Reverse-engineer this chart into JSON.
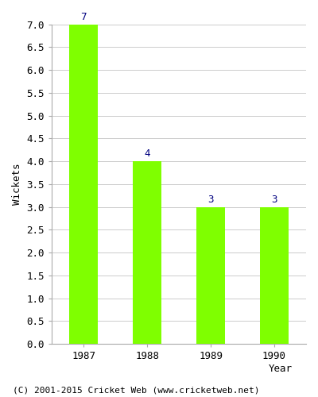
{
  "years": [
    "1987",
    "1988",
    "1989",
    "1990"
  ],
  "values": [
    7,
    4,
    3,
    3
  ],
  "bar_color": "#7FFF00",
  "xlabel": "Year",
  "ylabel": "Wickets",
  "ylim": [
    0.0,
    7.0
  ],
  "yticks": [
    0.0,
    0.5,
    1.0,
    1.5,
    2.0,
    2.5,
    3.0,
    3.5,
    4.0,
    4.5,
    5.0,
    5.5,
    6.0,
    6.5,
    7.0
  ],
  "label_color": "#000080",
  "label_fontsize": 9,
  "axis_fontsize": 9,
  "tick_fontsize": 9,
  "footer_text": "(C) 2001-2015 Cricket Web (www.cricketweb.net)",
  "footer_fontsize": 8,
  "background_color": "#ffffff",
  "grid_color": "#cccccc",
  "bar_width": 0.45
}
